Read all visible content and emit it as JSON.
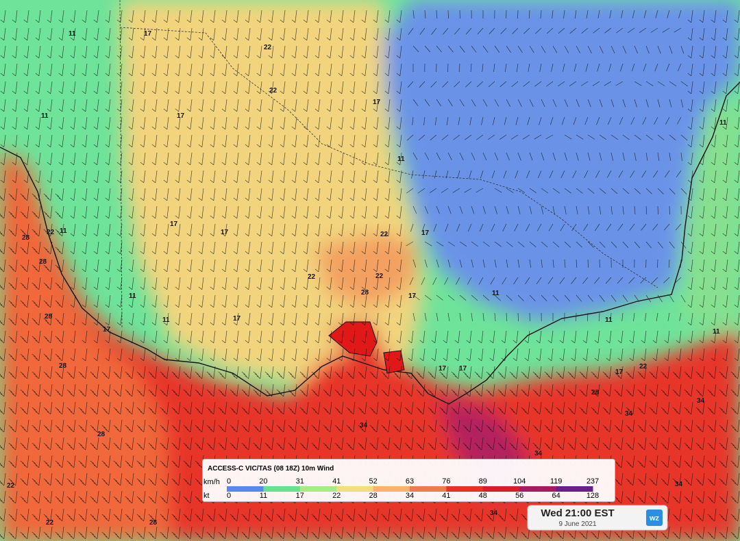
{
  "legend": {
    "title": "ACCESS-C VIC/TAS (08 18Z) 10m Wind",
    "unit_top": "km/h",
    "unit_bottom": "kt",
    "kmh": [
      0,
      20,
      31,
      41,
      52,
      63,
      76,
      89,
      104,
      119,
      237
    ],
    "kt": [
      0,
      11,
      17,
      22,
      28,
      34,
      41,
      48,
      56,
      64,
      128
    ],
    "colors": [
      "#5b86f0",
      "#63e38f",
      "#a8ea86",
      "#f4de7c",
      "#f6b46a",
      "#f07a50",
      "#e8302a",
      "#d81c2a",
      "#a91a63",
      "#6a1f8c",
      "#232a86"
    ]
  },
  "time": {
    "label": "Wed 21:00 EST",
    "date": "9 June 2021",
    "logo": "wz"
  },
  "contours": [
    11,
    17,
    22,
    11,
    17,
    22,
    17,
    11,
    11,
    22,
    17,
    17,
    28,
    28,
    17,
    11,
    17,
    11,
    22,
    22,
    22,
    28,
    17,
    17,
    11,
    11,
    11,
    11,
    17,
    17,
    17,
    22,
    28,
    34,
    34,
    34,
    34,
    34,
    34,
    28,
    22,
    22,
    28,
    28,
    28
  ]
}
